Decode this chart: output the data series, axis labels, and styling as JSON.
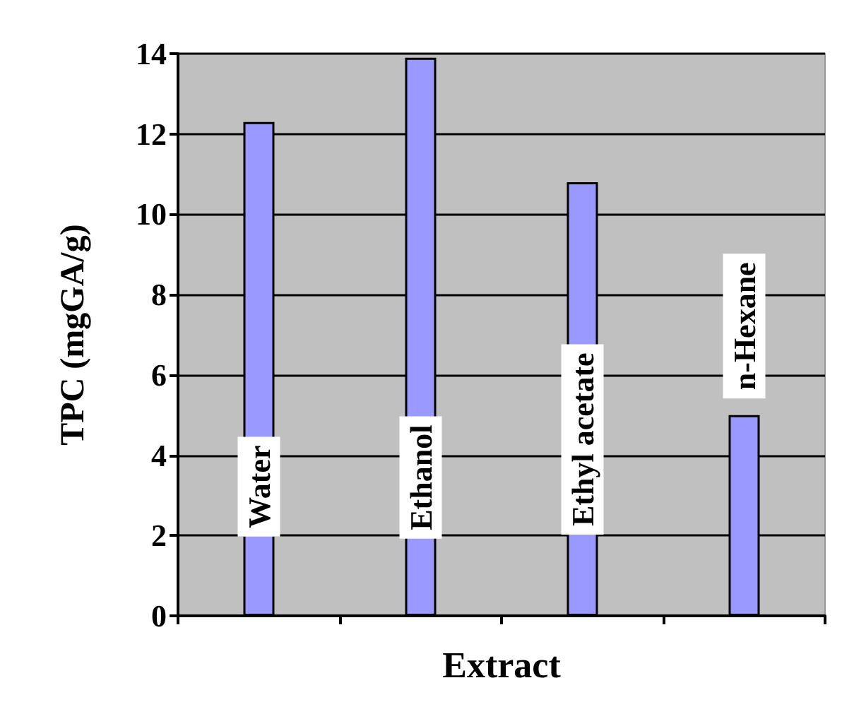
{
  "chart_data": {
    "type": "bar",
    "xlabel": "Extract",
    "ylabel": "TPC (mgGA/g)",
    "categories": [
      "Water",
      "Ethanol",
      "Ethyl acetate",
      "n-Hexane"
    ],
    "values": [
      12.3,
      13.9,
      10.8,
      5.0
    ],
    "color": "#9999ff",
    "ylim": [
      0,
      14
    ],
    "yticks": [
      0,
      2,
      4,
      6,
      8,
      10,
      12,
      14
    ],
    "grid": "y"
  }
}
